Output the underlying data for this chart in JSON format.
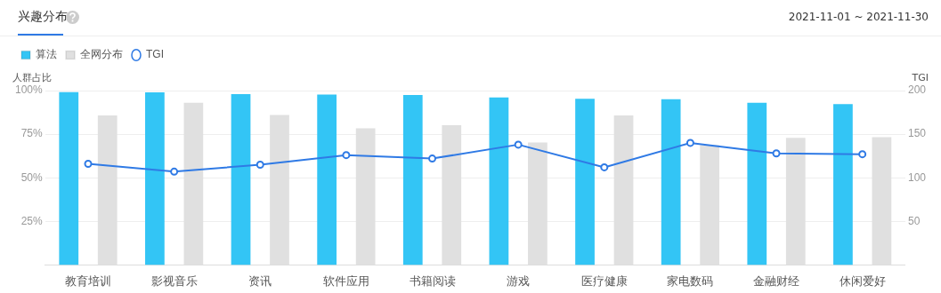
{
  "chart_data": {
    "type": "bar",
    "title": "兴趣分布",
    "subtitle": "2021-11-01 ~ 2021-11-30",
    "categories": [
      "教育培训",
      "影视音乐",
      "资讯",
      "软件应用",
      "书籍阅读",
      "游戏",
      "医疗健康",
      "家电数码",
      "金融财经",
      "休闲爱好"
    ],
    "series": [
      {
        "name": "算法",
        "color": "#33c5f5",
        "values": [
          99.1,
          99.0,
          97.9,
          97.7,
          97.5,
          96.1,
          95.3,
          95.0,
          93.0,
          92.2
        ]
      },
      {
        "name": "全网分布",
        "color": "#e0e0e0",
        "values": [
          85.8,
          93.0,
          86.0,
          78.4,
          80.1,
          70.2,
          85.8,
          68.7,
          72.9,
          73.3
        ]
      },
      {
        "name": "TGI",
        "type": "line",
        "axis": "y2",
        "color": "#2f7ae5",
        "marker": "circle",
        "line_style": "solid",
        "values": [
          116,
          107,
          115,
          126,
          122,
          138,
          112,
          140,
          128,
          127
        ]
      }
    ],
    "ylabel": "人群占比",
    "y2label": "TGI",
    "ylim": [
      0,
      100
    ],
    "yticks": [
      {
        "value": 25,
        "label": "25%"
      },
      {
        "value": 50,
        "label": "50%"
      },
      {
        "value": 75,
        "label": "75%"
      },
      {
        "value": 100,
        "label": "100%"
      }
    ],
    "y2lim": [
      0,
      200
    ],
    "y2ticks": [
      50,
      100,
      150,
      200
    ],
    "grid": "y",
    "legend": "top left"
  }
}
